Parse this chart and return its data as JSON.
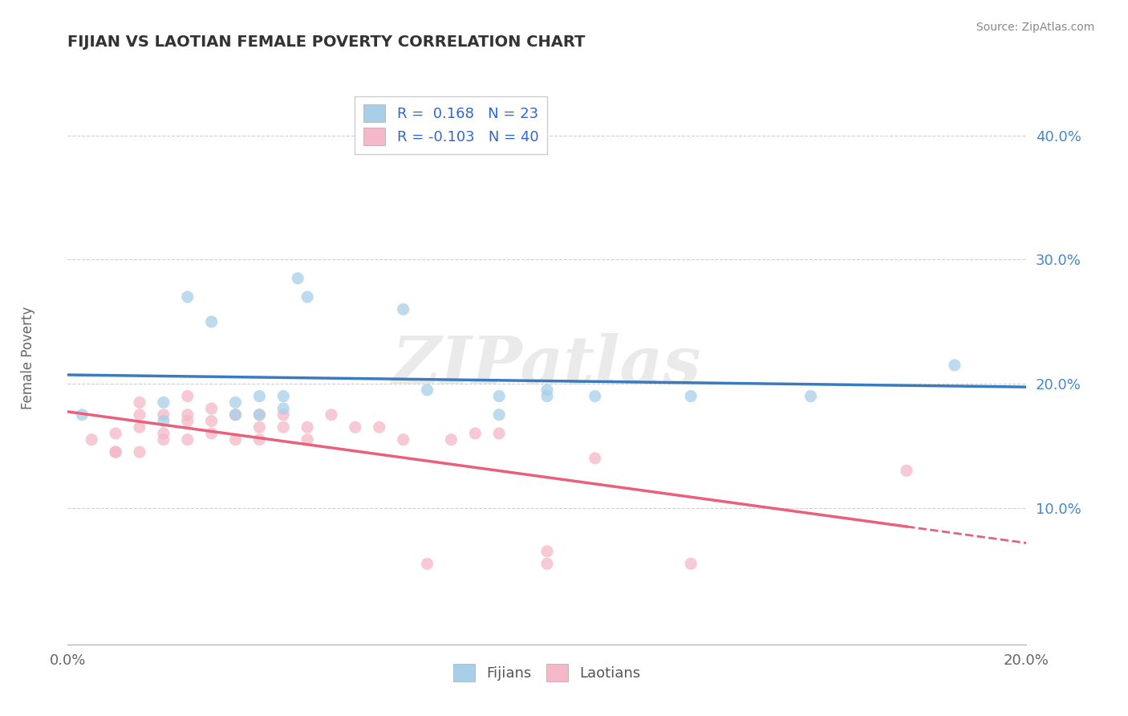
{
  "title": "FIJIAN VS LAOTIAN FEMALE POVERTY CORRELATION CHART",
  "source": "Source: ZipAtlas.com",
  "ylabel": "Female Poverty",
  "xlim": [
    0.0,
    0.2
  ],
  "ylim": [
    -0.01,
    0.44
  ],
  "yticks": [
    0.1,
    0.2,
    0.3,
    0.4
  ],
  "ytick_labels": [
    "10.0%",
    "20.0%",
    "30.0%",
    "40.0%"
  ],
  "xtick_labels": [
    "0.0%",
    "20.0%"
  ],
  "fijian_color": "#a8cfe8",
  "laotian_color": "#f4b8c8",
  "fijian_line_color": "#3a7abf",
  "laotian_line_color": "#e8607a",
  "laotian_line_solid_color": "#e8607a",
  "R_fijian": 0.168,
  "N_fijian": 23,
  "R_laotian": -0.103,
  "N_laotian": 40,
  "legend_text_color": "#3366cc",
  "legend_label_color": "#333333",
  "fijian_x": [
    0.003,
    0.02,
    0.02,
    0.025,
    0.03,
    0.035,
    0.035,
    0.04,
    0.04,
    0.045,
    0.045,
    0.048,
    0.05,
    0.07,
    0.075,
    0.09,
    0.09,
    0.1,
    0.1,
    0.11,
    0.13,
    0.155,
    0.185
  ],
  "fijian_y": [
    0.175,
    0.185,
    0.17,
    0.27,
    0.25,
    0.185,
    0.175,
    0.19,
    0.175,
    0.19,
    0.18,
    0.285,
    0.27,
    0.26,
    0.195,
    0.19,
    0.175,
    0.195,
    0.19,
    0.19,
    0.19,
    0.19,
    0.215
  ],
  "laotian_x": [
    0.005,
    0.01,
    0.01,
    0.01,
    0.015,
    0.015,
    0.015,
    0.015,
    0.02,
    0.02,
    0.02,
    0.025,
    0.025,
    0.025,
    0.025,
    0.03,
    0.03,
    0.03,
    0.035,
    0.035,
    0.04,
    0.04,
    0.04,
    0.045,
    0.045,
    0.05,
    0.05,
    0.055,
    0.06,
    0.065,
    0.07,
    0.075,
    0.08,
    0.085,
    0.09,
    0.1,
    0.1,
    0.11,
    0.13,
    0.175
  ],
  "laotian_y": [
    0.155,
    0.16,
    0.145,
    0.145,
    0.185,
    0.175,
    0.165,
    0.145,
    0.175,
    0.16,
    0.155,
    0.19,
    0.175,
    0.17,
    0.155,
    0.18,
    0.17,
    0.16,
    0.175,
    0.155,
    0.175,
    0.165,
    0.155,
    0.175,
    0.165,
    0.165,
    0.155,
    0.175,
    0.165,
    0.165,
    0.155,
    0.055,
    0.155,
    0.16,
    0.16,
    0.065,
    0.055,
    0.14,
    0.055,
    0.13
  ],
  "background_color": "#ffffff",
  "grid_color": "#d0d0d0",
  "watermark": "ZIPatlas",
  "marker_size": 120,
  "marker_alpha": 0.75
}
